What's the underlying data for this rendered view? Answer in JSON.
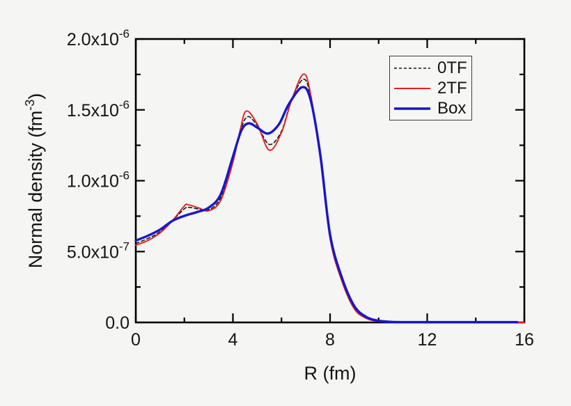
{
  "figure": {
    "background": "#f5f5f4",
    "frame_color": "#000000",
    "text_color": "#141414"
  },
  "chart_data": {
    "type": "line",
    "title": "",
    "xlabel": "R (fm)",
    "ylabel": "Normal density (fm^-3)",
    "xlim": [
      0,
      16
    ],
    "ylim": [
      0,
      2e-06
    ],
    "grid": false,
    "legend_position": "upper-right-inside",
    "x_major_ticks": [
      0,
      4,
      8,
      12,
      16
    ],
    "x_minor_ticks": [
      2,
      6,
      10,
      14
    ],
    "x_tick_labels": [
      "0",
      "4",
      "8",
      "12",
      "16"
    ],
    "y_major_ticks": [
      0,
      5e-07,
      1e-06,
      1.5e-06,
      2e-06
    ],
    "y_minor_ticks": [
      2.5e-07,
      7.5e-07,
      1.25e-06,
      1.75e-06
    ],
    "y_tick_labels": [
      "0.0",
      "5.0x10^-7",
      "1.0x10^-6",
      "1.5x10^-6",
      "2.0x10^-6"
    ],
    "series": [
      {
        "name": "0TF",
        "color": "#141414",
        "style": "dashed",
        "width": 1.6,
        "points": [
          [
            0,
            5.57e-07
          ],
          [
            0.5,
            5.92e-07
          ],
          [
            1.0,
            6.4e-07
          ],
          [
            1.5,
            7.16e-07
          ],
          [
            2.0,
            8.02e-07
          ],
          [
            2.2,
            8.12e-07
          ],
          [
            2.6,
            8e-07
          ],
          [
            3.0,
            7.95e-07
          ],
          [
            3.5,
            8.8e-07
          ],
          [
            4.0,
            1.15e-06
          ],
          [
            4.3,
            1.35e-06
          ],
          [
            4.6,
            1.452e-06
          ],
          [
            5.0,
            1.39e-06
          ],
          [
            5.5,
            1.256e-06
          ],
          [
            6.0,
            1.35e-06
          ],
          [
            6.4,
            1.565e-06
          ],
          [
            6.9,
            1.716e-06
          ],
          [
            7.2,
            1.59e-06
          ],
          [
            7.6,
            1.16e-06
          ],
          [
            8.0,
            6e-07
          ],
          [
            8.5,
            2.9e-07
          ],
          [
            9.0,
            1e-07
          ],
          [
            9.5,
            3e-08
          ],
          [
            10.0,
            8e-09
          ],
          [
            10.5,
            2e-09
          ],
          [
            11.0,
            0
          ],
          [
            12.0,
            0
          ],
          [
            14.0,
            0
          ],
          [
            16.0,
            0
          ]
        ]
      },
      {
        "name": "2TF",
        "color": "#df2020",
        "style": "solid",
        "width": 1.9,
        "points": [
          [
            0,
            5.45e-07
          ],
          [
            0.5,
            5.78e-07
          ],
          [
            1.0,
            6.32e-07
          ],
          [
            1.5,
            7.16e-07
          ],
          [
            2.0,
            8.22e-07
          ],
          [
            2.15,
            8.31e-07
          ],
          [
            2.6,
            8.08e-07
          ],
          [
            3.0,
            7.88e-07
          ],
          [
            3.5,
            8.62e-07
          ],
          [
            4.0,
            1.13e-06
          ],
          [
            4.3,
            1.36e-06
          ],
          [
            4.55,
            1.492e-06
          ],
          [
            5.0,
            1.4e-06
          ],
          [
            5.5,
            1.215e-06
          ],
          [
            6.0,
            1.34e-06
          ],
          [
            6.4,
            1.56e-06
          ],
          [
            6.9,
            1.752e-06
          ],
          [
            7.2,
            1.61e-06
          ],
          [
            7.6,
            1.15e-06
          ],
          [
            8.0,
            5.9e-07
          ],
          [
            8.5,
            2.85e-07
          ],
          [
            9.0,
            9.5e-08
          ],
          [
            9.5,
            2.8e-08
          ],
          [
            10.0,
            7e-09
          ],
          [
            10.5,
            2e-09
          ],
          [
            11.0,
            0
          ],
          [
            12.0,
            0
          ],
          [
            14.0,
            0
          ],
          [
            16.0,
            0
          ]
        ]
      },
      {
        "name": "Box",
        "color": "#1616cd",
        "style": "solid",
        "width": 3.4,
        "points": [
          [
            0,
            5.78e-07
          ],
          [
            0.5,
            6.12e-07
          ],
          [
            1.0,
            6.55e-07
          ],
          [
            1.5,
            7.16e-07
          ],
          [
            2.0,
            7.52e-07
          ],
          [
            2.5,
            7.78e-07
          ],
          [
            3.0,
            8.1e-07
          ],
          [
            3.5,
            9.05e-07
          ],
          [
            4.0,
            1.17e-06
          ],
          [
            4.35,
            1.355e-06
          ],
          [
            4.65,
            1.405e-06
          ],
          [
            5.0,
            1.375e-06
          ],
          [
            5.45,
            1.333e-06
          ],
          [
            5.9,
            1.4e-06
          ],
          [
            6.3,
            1.54e-06
          ],
          [
            6.85,
            1.66e-06
          ],
          [
            7.2,
            1.57e-06
          ],
          [
            7.6,
            1.18e-06
          ],
          [
            8.0,
            6.2e-07
          ],
          [
            8.5,
            3.1e-07
          ],
          [
            9.0,
            1.15e-07
          ],
          [
            9.5,
            3.8e-08
          ],
          [
            10.0,
            1.2e-08
          ],
          [
            10.5,
            4e-09
          ],
          [
            11.0,
            2e-09
          ],
          [
            12.0,
            2e-09
          ],
          [
            14.0,
            2e-09
          ],
          [
            15.7,
            2e-09
          ]
        ]
      }
    ]
  }
}
